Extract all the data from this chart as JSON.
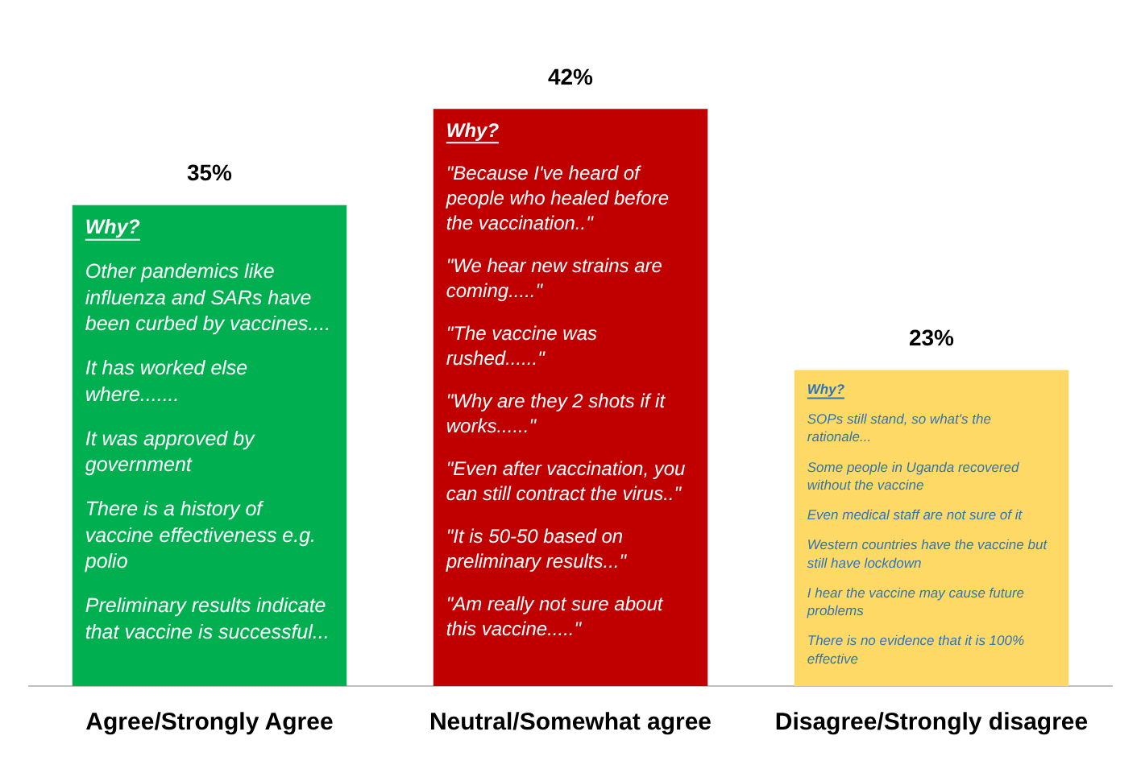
{
  "chart_data": {
    "type": "bar",
    "categories": [
      "Agree/Strongly Agree",
      "Neutral/Somewhat agree",
      "Disagree/Strongly disagree"
    ],
    "values": [
      35,
      42,
      23
    ],
    "colors": [
      "#00b050",
      "#c00000",
      "#ffd966"
    ],
    "value_labels": [
      "35%",
      "42%",
      "23%"
    ],
    "grid": false,
    "legend": false,
    "annotations": [
      "Why?\nOther pandemics like influenza and SARs have been curbed by vaccines....\nIt has worked else where.......\nIt was approved by government\nThere is a history of vaccine effectiveness e.g. polio\nPreliminary results indicate that vaccine is successful...",
      "Why?\n\"Because I've heard of people who healed before the vaccination..\"\n\"We hear new strains are coming.....\"\n\"The vaccine was rushed......\"\n\"Why are they 2 shots if it works......\"\n\"Even after vaccination, you can still contract the virus..\"\n\"It is 50-50 based on preliminary results...\"\n\"Am really not sure about this vaccine.....\"",
      "Why?\nSOPs still stand, so what's the rationale...\nSome people in Uganda recovered without the vaccine\nEven medical staff are not sure of it\nWestern countries have the vaccine but still have lockdown\nI hear the vaccine may cause future problems\nThere is no evidence that it is 100% effective"
    ]
  }
}
